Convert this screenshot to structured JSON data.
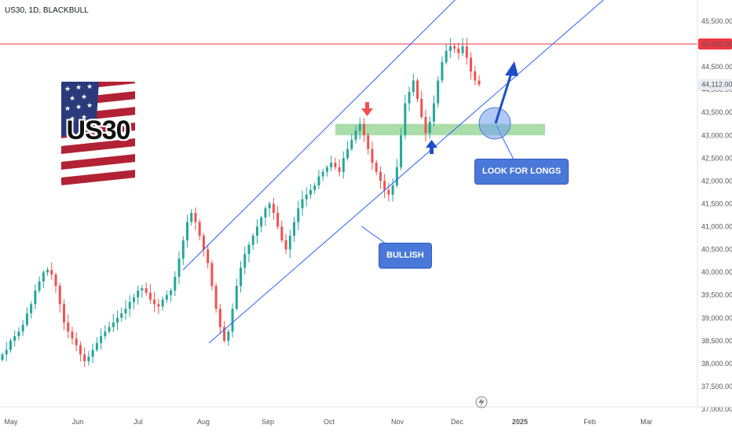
{
  "symbol_title": "US30, 1D, BLACKBULL",
  "logo_text": "US30",
  "callouts": {
    "look_for_longs": "LOOK FOR LONGS",
    "bullish": "BULLISH"
  },
  "colors": {
    "bull": "#26a69a",
    "bear": "#ef5350",
    "resistance": "#f23645",
    "channel": "#2962ff",
    "zone": "#8fd18f",
    "callout": "#4a78d8"
  },
  "icons": [
    "flash-icon",
    "arrow-down-icon",
    "arrow-up-icon"
  ],
  "chart_data": {
    "type": "candlestick",
    "price_axis": {
      "ticks": [
        "45,500.00",
        "45,000.00",
        "44,500.00",
        "44,000.00",
        "43,500.00",
        "43,000.00",
        "42,500.00",
        "42,000.00",
        "41,500.00",
        "41,000.00",
        "40,500.00",
        "40,000.00",
        "39,500.00",
        "39,000.00",
        "38,500.00",
        "38,000.00",
        "37,500.00",
        "37,000.00"
      ],
      "range": [
        37000,
        45800
      ]
    },
    "time_axis": {
      "labels": [
        "May",
        "Jun",
        "Jul",
        "Aug",
        "Sep",
        "Oct",
        "Nov",
        "Dec",
        "2025",
        "Feb",
        "Mar"
      ]
    },
    "current_price": 44112,
    "current_price_label": "44,112.00",
    "resistance_level": 45000,
    "resistance_label": "45,000.00",
    "demand_zone": [
      43000,
      43250
    ],
    "channel_upper": [
      [
        40050,
        45900
      ],
      [
        41900,
        46500
      ]
    ],
    "channel_lower": [
      [
        38450,
        42950
      ]
    ],
    "trend_path": [
      38200,
      38300,
      38500,
      38600,
      38700,
      38850,
      39100,
      39300,
      39600,
      39800,
      40000,
      40050,
      39950,
      39700,
      39300,
      38900,
      38700,
      38550,
      38400,
      38200,
      38050,
      38150,
      38300,
      38450,
      38600,
      38700,
      38800,
      38900,
      39000,
      39100,
      39200,
      39350,
      39450,
      39600,
      39650,
      39550,
      39400,
      39300,
      39250,
      39400,
      39500,
      39600,
      39900,
      40300,
      40700,
      41100,
      41300,
      41100,
      40800,
      40500,
      40200,
      39700,
      39200,
      38800,
      38500,
      38700,
      39200,
      39700,
      40100,
      40400,
      40600,
      40800,
      41000,
      41200,
      41400,
      41500,
      41300,
      41000,
      40700,
      40500,
      40800,
      41100,
      41400,
      41600,
      41700,
      41800,
      41900,
      42100,
      42200,
      42300,
      42400,
      42300,
      42200,
      42500,
      42700,
      42900,
      43100,
      43250,
      43000,
      42700,
      42400,
      42200,
      42000,
      41800,
      41700,
      41900,
      42300,
      43000,
      43700,
      43950,
      44200,
      43800,
      43400,
      43050,
      43300,
      43700,
      44200,
      44600,
      44850,
      44950,
      44900,
      44800,
      44950,
      44700,
      44400,
      44200,
      44112
    ],
    "annotations": [
      "LOOK FOR LONGS",
      "BULLISH"
    ]
  }
}
